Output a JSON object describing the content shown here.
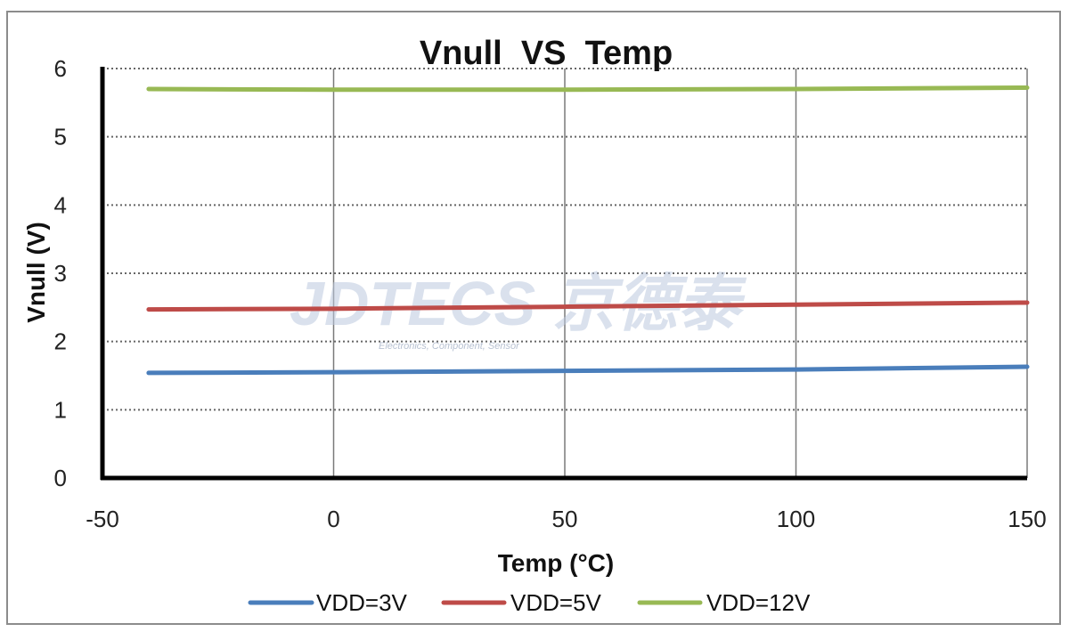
{
  "chart_data": {
    "type": "line",
    "title": "Vnull  VS  Temp",
    "xlabel": "Temp (°C)",
    "ylabel": "Vnull (V)",
    "xlim": [
      -50,
      150
    ],
    "ylim": [
      0,
      6
    ],
    "xticks": [
      -50,
      0,
      50,
      100,
      150
    ],
    "yticks": [
      0,
      1,
      2,
      3,
      4,
      5,
      6
    ],
    "grid": {
      "x": "solid",
      "y": "dotted"
    },
    "legend": "bottom",
    "series": [
      {
        "name": "VDD=3V",
        "color": "#4a7ebb",
        "x": [
          -40,
          0,
          50,
          100,
          150
        ],
        "y": [
          1.54,
          1.55,
          1.57,
          1.59,
          1.63
        ]
      },
      {
        "name": "VDD=5V",
        "color": "#be4b48",
        "x": [
          -40,
          0,
          50,
          100,
          150
        ],
        "y": [
          2.47,
          2.48,
          2.51,
          2.54,
          2.57
        ]
      },
      {
        "name": "VDD=12V",
        "color": "#98b954",
        "x": [
          -40,
          0,
          50,
          100,
          150
        ],
        "y": [
          5.7,
          5.69,
          5.69,
          5.7,
          5.72
        ]
      }
    ]
  },
  "watermark": {
    "text": "JDTECS 京德泰",
    "subtext": "Electronics, Component, Sensor"
  }
}
